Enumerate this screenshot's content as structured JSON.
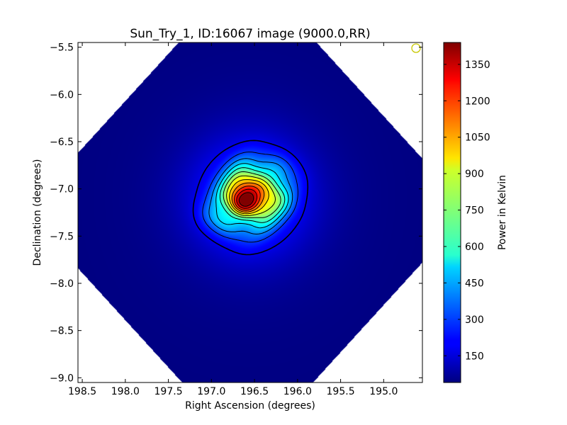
{
  "chart_data": {
    "type": "heatmap",
    "title": "Sun_Try_1, ID:16067 image (9000.0,RR)",
    "xlabel": "Right Ascension (degrees)",
    "ylabel": "Declination (degrees)",
    "colorbar_label": "Power in Kelvin",
    "colormap": "jet",
    "xlim": [
      198.55,
      194.55
    ],
    "ylim": [
      -9.05,
      -5.45
    ],
    "x_ticks": [
      198.5,
      198.0,
      197.5,
      197.0,
      196.5,
      196.0,
      195.5,
      195.0
    ],
    "x_tick_labels": [
      "198.5",
      "198.0",
      "197.5",
      "197.0",
      "196.5",
      "196.0",
      "195.5",
      "195.0"
    ],
    "y_ticks": [
      -5.5,
      -6.0,
      -6.5,
      -7.0,
      -7.5,
      -8.0,
      -8.5,
      -9.0
    ],
    "y_tick_labels": [
      "−5.5",
      "−6.0",
      "−6.5",
      "−7.0",
      "−7.5",
      "−8.0",
      "−8.5",
      "−9.0"
    ],
    "colorbar_range": [
      40,
      1440
    ],
    "colorbar_ticks": [
      150,
      300,
      450,
      600,
      750,
      900,
      1050,
      1200,
      1350
    ],
    "colorbar_tick_labels": [
      "150",
      "300",
      "450",
      "600",
      "750",
      "900",
      "1050",
      "1200",
      "1350"
    ],
    "peak": {
      "ra": 196.55,
      "dec": -7.08,
      "value": 1440
    },
    "background_value": 40,
    "contour_levels": [
      180,
      290,
      400,
      510,
      620,
      730,
      840,
      950,
      1060,
      1170,
      1280,
      1390
    ],
    "grid": false,
    "beam_marker": {
      "color": "#c8c800"
    },
    "colors": {
      "frame": "#000000",
      "outside": "#ffffff",
      "contour": "#000000"
    }
  }
}
